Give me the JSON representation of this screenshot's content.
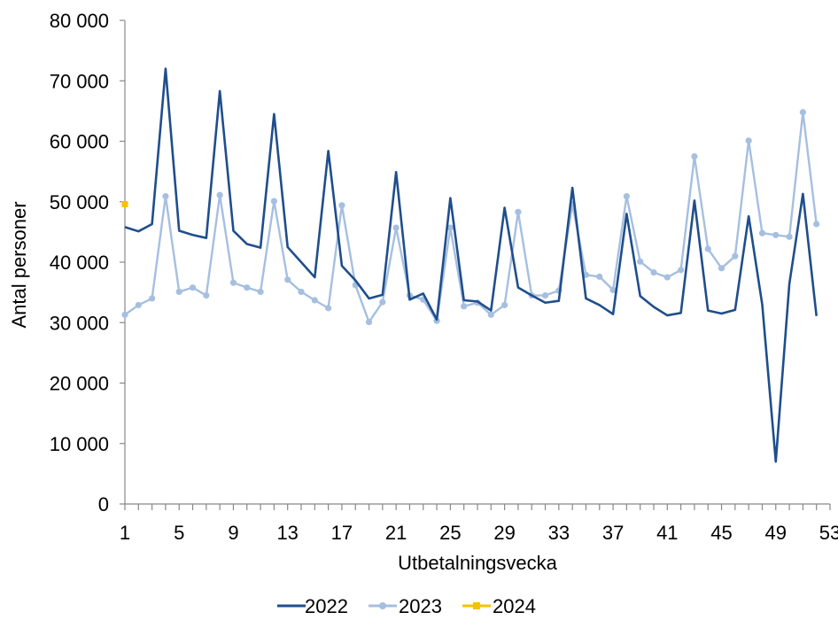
{
  "chart_data": {
    "type": "line",
    "xlabel": "Utbetalningsvecka",
    "ylabel": "Antal personer",
    "ylim": [
      0,
      80000
    ],
    "yticks": [
      0,
      10000,
      20000,
      30000,
      40000,
      50000,
      60000,
      70000,
      80000
    ],
    "ytick_labels": [
      "0",
      "10 000",
      "20 000",
      "30 000",
      "40 000",
      "50 000",
      "60 000",
      "70 000",
      "80 000"
    ],
    "xlim": [
      1,
      53
    ],
    "xticks": [
      1,
      5,
      9,
      13,
      17,
      21,
      25,
      29,
      33,
      37,
      41,
      45,
      49,
      53
    ],
    "xtick_labels": [
      "1",
      "5",
      "9",
      "13",
      "17",
      "21",
      "25",
      "29",
      "33",
      "37",
      "41",
      "45",
      "49",
      "53"
    ],
    "grid": false,
    "legend_position": "bottom",
    "series": [
      {
        "name": "2022",
        "color": "#1f4e8c",
        "marker": "none",
        "x": [
          1,
          2,
          3,
          4,
          5,
          6,
          7,
          8,
          9,
          10,
          11,
          12,
          13,
          14,
          15,
          16,
          17,
          18,
          19,
          20,
          21,
          22,
          23,
          24,
          25,
          26,
          27,
          28,
          29,
          30,
          31,
          32,
          33,
          34,
          35,
          36,
          37,
          38,
          39,
          40,
          41,
          42,
          43,
          44,
          45,
          46,
          47,
          48,
          49,
          50,
          51,
          52
        ],
        "values": [
          45800,
          45100,
          46300,
          72000,
          45200,
          44500,
          44000,
          68300,
          45200,
          43000,
          42400,
          64500,
          42500,
          40000,
          37500,
          58400,
          39400,
          37000,
          34000,
          34600,
          54900,
          33800,
          34800,
          30500,
          50600,
          33700,
          33500,
          32000,
          49000,
          35800,
          34500,
          33300,
          33600,
          52300,
          34000,
          32900,
          31400,
          48000,
          34400,
          32600,
          31200,
          31600,
          50200,
          32000,
          31500,
          32100,
          47600,
          33000,
          7000,
          36400,
          51300,
          31100
        ]
      },
      {
        "name": "2023",
        "color": "#a6bfe0",
        "marker": "circle",
        "x": [
          1,
          2,
          3,
          4,
          5,
          6,
          7,
          8,
          9,
          10,
          11,
          12,
          13,
          14,
          15,
          16,
          17,
          18,
          19,
          20,
          21,
          22,
          23,
          24,
          25,
          26,
          27,
          28,
          29,
          30,
          31,
          32,
          33,
          34,
          35,
          36,
          37,
          38,
          39,
          40,
          41,
          42,
          43,
          44,
          45,
          46,
          47,
          48,
          49,
          50,
          51,
          52
        ],
        "values": [
          31300,
          32900,
          34000,
          50900,
          35100,
          35800,
          34500,
          51100,
          36600,
          35800,
          35100,
          50100,
          37100,
          35100,
          33700,
          32400,
          49400,
          36200,
          30100,
          33400,
          45700,
          34500,
          33800,
          30300,
          45700,
          32700,
          33300,
          31300,
          32900,
          48300,
          34500,
          34500,
          35300,
          49600,
          37900,
          37600,
          35400,
          50900,
          40100,
          38300,
          37500,
          38700,
          57500,
          42200,
          39000,
          41000,
          60100,
          44800,
          44500,
          44200,
          64800,
          46300
        ]
      },
      {
        "name": "2024",
        "color": "#f5c200",
        "marker": "square",
        "x": [
          1
        ],
        "values": [
          49600
        ]
      }
    ]
  }
}
